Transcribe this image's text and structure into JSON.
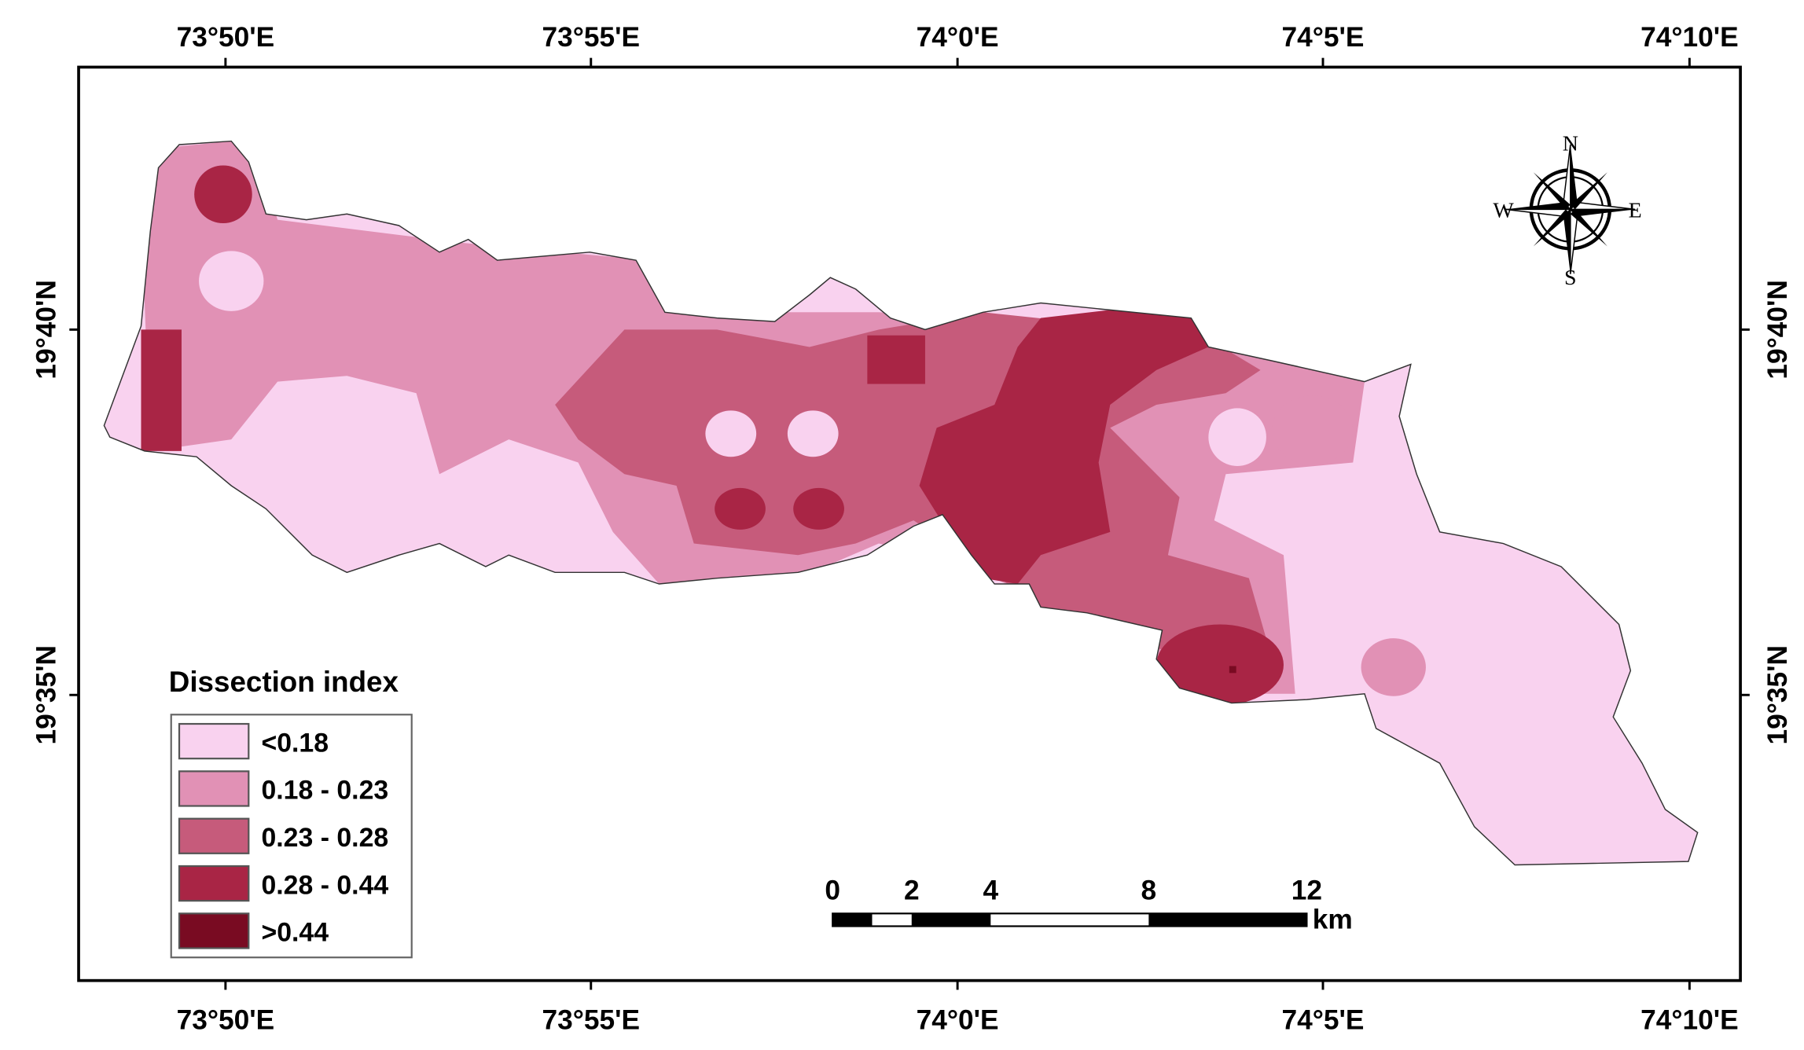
{
  "map": {
    "lon_labels": [
      "73°50'E",
      "73°55'E",
      "74°0'E",
      "74°5'E",
      "74°10'E"
    ],
    "lat_labels": [
      "19°40'N",
      "19°35'N"
    ],
    "legend": {
      "title": "Dissection index",
      "items": [
        {
          "label": "<0.18",
          "color": "#f9d2ef"
        },
        {
          "label": "0.18 - 0.23",
          "color": "#e191b5"
        },
        {
          "label": "0.23 - 0.28",
          "color": "#c65b7b"
        },
        {
          "label": "0.28 - 0.44",
          "color": "#a92545"
        },
        {
          "label": ">0.44",
          "color": "#790b22"
        }
      ]
    },
    "scale_bar": {
      "ticks": [
        0,
        2,
        4,
        8,
        12
      ],
      "unit": "km"
    },
    "compass": {
      "n": "N",
      "s": "S",
      "e": "E",
      "w": "W"
    }
  }
}
